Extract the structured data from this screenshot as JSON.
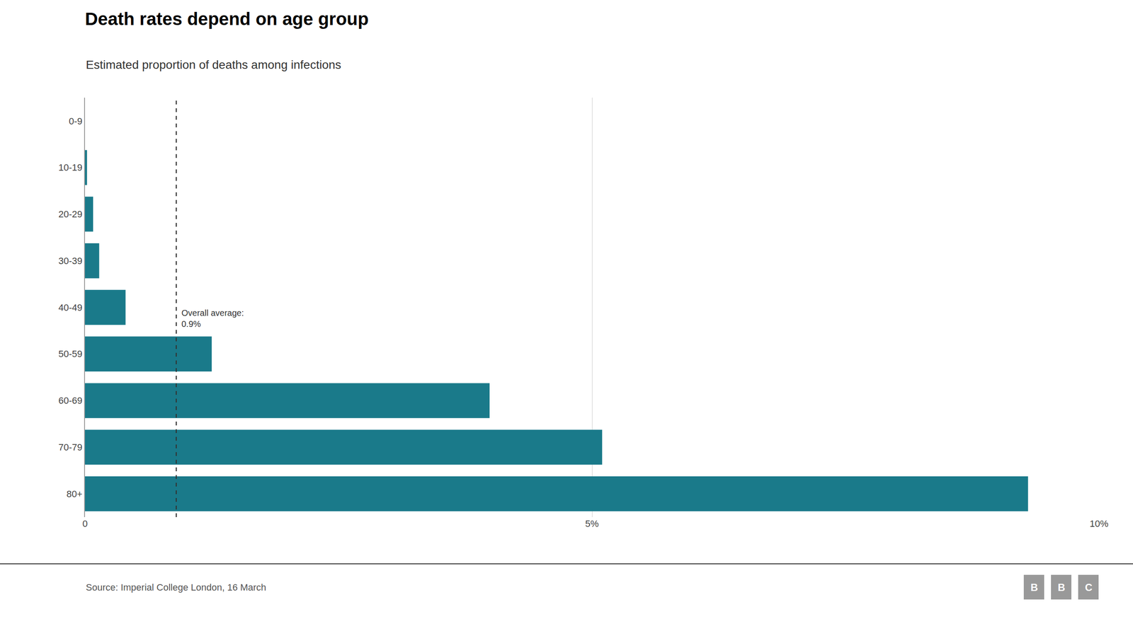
{
  "chart_data": {
    "type": "bar",
    "orientation": "horizontal",
    "title": "Death rates depend on age group",
    "subtitle": "Estimated proportion of deaths among infections",
    "source": "Source: Imperial College London, 16 March",
    "logo": "BBC",
    "categories": [
      "0-9",
      "10-19",
      "20-29",
      "30-39",
      "40-49",
      "50-59",
      "60-69",
      "70-79",
      "80+"
    ],
    "values": [
      0.0,
      0.02,
      0.08,
      0.14,
      0.4,
      1.25,
      3.99,
      5.1,
      9.3
    ],
    "color": "#1a7a8a",
    "xlim": [
      0,
      10
    ],
    "xticks": [
      0,
      {
        "value": 5,
        "label": "5%"
      },
      {
        "value": 10,
        "label": "10%"
      }
    ],
    "grid": true,
    "average_line": {
      "value": 0.9,
      "label": "Overall average:\n0.9%"
    }
  }
}
